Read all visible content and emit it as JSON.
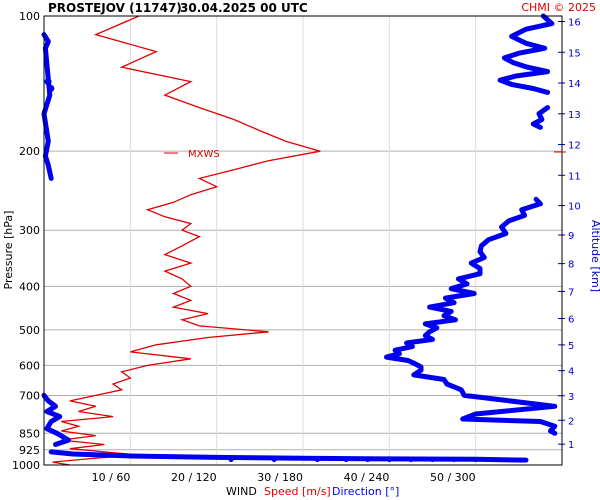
{
  "header": {
    "station": "PROSTEJOV (11747)",
    "datetime": "30.04.2025 00 UTC",
    "credit": "CHMI © 2025"
  },
  "axes": {
    "left_title": "Pressure [hPa]",
    "right_title": "Altitude [km]",
    "bottom_prefix": "WIND",
    "bottom_speed": "Speed [m/s]",
    "bottom_direction": "Direction [°]",
    "pressure_ticks": [
      "100",
      "200",
      "300",
      "400",
      "500",
      "600",
      "700",
      "850",
      "925",
      "1000"
    ],
    "wind_ticks": [
      "10 / 60",
      "20 / 120",
      "30 / 180",
      "40 / 240",
      "50 / 300"
    ],
    "altitude_ticks": [
      "1",
      "2",
      "3",
      "4",
      "5",
      "6",
      "7",
      "8",
      "9",
      "10",
      "11",
      "12",
      "13",
      "14",
      "15",
      "16"
    ]
  },
  "annotations": {
    "mxws": "MXWS"
  },
  "colors": {
    "speed": "#e00000",
    "direction": "#0000ee",
    "grid": "#b0b0b0",
    "credit": "#e00000",
    "altitude": "#0000cc"
  },
  "chart_data": {
    "type": "line",
    "y_axis": "pressure_hpa_log",
    "ylim": [
      1000,
      100
    ],
    "speed_axis_ms": [
      0,
      60
    ],
    "direction_axis_deg": [
      0,
      360
    ],
    "pressure_levels": [
      100,
      200,
      300,
      400,
      500,
      600,
      700,
      850,
      925,
      1000
    ],
    "wind_speed": {
      "name": "Speed [m/s]",
      "points": [
        [
          1000,
          3
        ],
        [
          985,
          1
        ],
        [
          965,
          6
        ],
        [
          950,
          11
        ],
        [
          935,
          7
        ],
        [
          920,
          3
        ],
        [
          900,
          7
        ],
        [
          880,
          2
        ],
        [
          860,
          6
        ],
        [
          840,
          2
        ],
        [
          820,
          4
        ],
        [
          800,
          2
        ],
        [
          780,
          8
        ],
        [
          760,
          4
        ],
        [
          740,
          6
        ],
        [
          720,
          3
        ],
        [
          700,
          6
        ],
        [
          680,
          9
        ],
        [
          660,
          8
        ],
        [
          640,
          10
        ],
        [
          620,
          9
        ],
        [
          600,
          12
        ],
        [
          580,
          17
        ],
        [
          560,
          10
        ],
        [
          540,
          13
        ],
        [
          520,
          19
        ],
        [
          505,
          26
        ],
        [
          490,
          18
        ],
        [
          475,
          16
        ],
        [
          460,
          19
        ],
        [
          445,
          15
        ],
        [
          430,
          17
        ],
        [
          415,
          15
        ],
        [
          400,
          17
        ],
        [
          385,
          16
        ],
        [
          370,
          14
        ],
        [
          355,
          17
        ],
        [
          340,
          14
        ],
        [
          325,
          16
        ],
        [
          310,
          18
        ],
        [
          300,
          16
        ],
        [
          290,
          17
        ],
        [
          280,
          14
        ],
        [
          270,
          12
        ],
        [
          260,
          15
        ],
        [
          250,
          17
        ],
        [
          240,
          20
        ],
        [
          230,
          18
        ],
        [
          220,
          22
        ],
        [
          210,
          26
        ],
        [
          200,
          32
        ],
        [
          190,
          28
        ],
        [
          180,
          25
        ],
        [
          170,
          22
        ],
        [
          160,
          18
        ],
        [
          150,
          14
        ],
        [
          140,
          17
        ],
        [
          130,
          9
        ],
        [
          120,
          13
        ],
        [
          110,
          6
        ],
        [
          100,
          11
        ]
      ]
    },
    "wind_direction": {
      "name": "Direction [°]",
      "segments": [
        [
          [
            100,
            347
          ],
          [
            104,
            353
          ],
          [
            107,
            335
          ],
          [
            111,
            325
          ],
          [
            115,
            335
          ],
          [
            118,
            348
          ],
          [
            121,
            330
          ],
          [
            124,
            320
          ],
          [
            127,
            326
          ],
          [
            130,
            336
          ],
          [
            133,
            350
          ],
          [
            136,
            328
          ],
          [
            139,
            317
          ],
          [
            142,
            325
          ],
          [
            145,
            340
          ],
          [
            148,
            350
          ]
        ],
        [
          [
            160,
            350
          ],
          [
            165,
            344
          ],
          [
            170,
            346
          ],
          [
            174,
            340
          ],
          [
            177,
            345
          ]
        ],
        [
          [
            256,
            342
          ],
          [
            262,
            345
          ],
          [
            270,
            332
          ],
          [
            278,
            334
          ],
          [
            286,
            323
          ],
          [
            295,
            318
          ],
          [
            305,
            321
          ],
          [
            315,
            309
          ],
          [
            325,
            304
          ],
          [
            335,
            303
          ],
          [
            345,
            306
          ],
          [
            355,
            297
          ],
          [
            365,
            303
          ],
          [
            375,
            303
          ],
          [
            385,
            288
          ],
          [
            395,
            294
          ],
          [
            405,
            283
          ],
          [
            415,
            299
          ],
          [
            425,
            279
          ],
          [
            435,
            285
          ],
          [
            445,
            268
          ],
          [
            455,
            283
          ],
          [
            465,
            278
          ],
          [
            475,
            286
          ],
          [
            485,
            265
          ],
          [
            495,
            273
          ],
          [
            505,
            268
          ],
          [
            515,
            265
          ],
          [
            525,
            270
          ],
          [
            535,
            252
          ],
          [
            545,
            256
          ],
          [
            555,
            244
          ],
          [
            565,
            247
          ],
          [
            575,
            238
          ],
          [
            585,
            253
          ],
          [
            595,
            258
          ],
          [
            605,
            262
          ],
          [
            615,
            262
          ],
          [
            630,
            257
          ],
          [
            645,
            278
          ],
          [
            660,
            280
          ],
          [
            680,
            290
          ],
          [
            700,
            292
          ],
          [
            740,
            355
          ],
          [
            770,
            300
          ],
          [
            790,
            291
          ],
          [
            800,
            345
          ],
          [
            820,
            355
          ],
          [
            840,
            352
          ],
          [
            850,
            355
          ]
        ],
        [
          [
            110,
            0
          ],
          [
            114,
            3
          ],
          [
            118,
            1
          ],
          [
            150,
            4
          ],
          [
            165,
            0
          ],
          [
            190,
            3
          ],
          [
            205,
            1
          ],
          [
            215,
            3
          ],
          [
            230,
            5
          ]
        ],
        [
          [
            700,
            0
          ],
          [
            720,
            3
          ],
          [
            740,
            8
          ],
          [
            760,
            2
          ],
          [
            780,
            11
          ],
          [
            800,
            5
          ],
          [
            830,
            2
          ],
          [
            850,
            9
          ],
          [
            880,
            17
          ],
          [
            900,
            8
          ]
        ],
        [
          [
            935,
            5
          ],
          [
            945,
            20
          ],
          [
            955,
            60
          ],
          [
            962,
            120
          ],
          [
            966,
            180
          ],
          [
            969,
            240
          ],
          [
            971,
            300
          ],
          [
            975,
            335
          ]
        ]
      ]
    }
  }
}
